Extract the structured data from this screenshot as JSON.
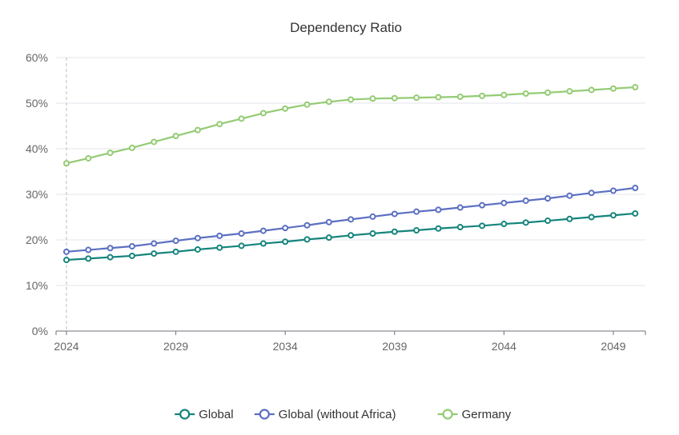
{
  "chart_data": {
    "type": "line",
    "title": "Dependency Ratio",
    "xlabel": "",
    "ylabel": "",
    "x": [
      2024,
      2025,
      2026,
      2027,
      2028,
      2029,
      2030,
      2031,
      2032,
      2033,
      2034,
      2035,
      2036,
      2037,
      2038,
      2039,
      2040,
      2041,
      2042,
      2043,
      2044,
      2045,
      2046,
      2047,
      2048,
      2049,
      2050
    ],
    "x_ticks": [
      "2024",
      "2029",
      "2034",
      "2039",
      "2044",
      "2049"
    ],
    "y_ticks": [
      "0%",
      "10%",
      "20%",
      "30%",
      "40%",
      "50%",
      "60%"
    ],
    "ylim": [
      0,
      60
    ],
    "grid": true,
    "legend_position": "bottom",
    "series": [
      {
        "name": "Global",
        "color": "#14847c",
        "values": [
          15.6,
          15.9,
          16.2,
          16.5,
          17.0,
          17.4,
          17.9,
          18.3,
          18.7,
          19.2,
          19.6,
          20.1,
          20.5,
          21.0,
          21.4,
          21.8,
          22.1,
          22.5,
          22.8,
          23.1,
          23.5,
          23.8,
          24.2,
          24.6,
          25.0,
          25.4,
          25.8
        ]
      },
      {
        "name": "Global (without Africa)",
        "color": "#5b6fc2",
        "values": [
          17.4,
          17.8,
          18.2,
          18.6,
          19.2,
          19.8,
          20.4,
          20.9,
          21.4,
          22.0,
          22.6,
          23.2,
          23.9,
          24.5,
          25.1,
          25.7,
          26.2,
          26.6,
          27.1,
          27.6,
          28.1,
          28.6,
          29.1,
          29.7,
          30.3,
          30.8,
          31.4
        ]
      },
      {
        "name": "Germany",
        "color": "#93cb73",
        "values": [
          36.8,
          37.9,
          39.1,
          40.2,
          41.5,
          42.8,
          44.1,
          45.4,
          46.6,
          47.8,
          48.8,
          49.7,
          50.3,
          50.8,
          51.0,
          51.1,
          51.2,
          51.3,
          51.4,
          51.6,
          51.8,
          52.1,
          52.3,
          52.6,
          52.9,
          53.2,
          53.5
        ]
      }
    ]
  }
}
